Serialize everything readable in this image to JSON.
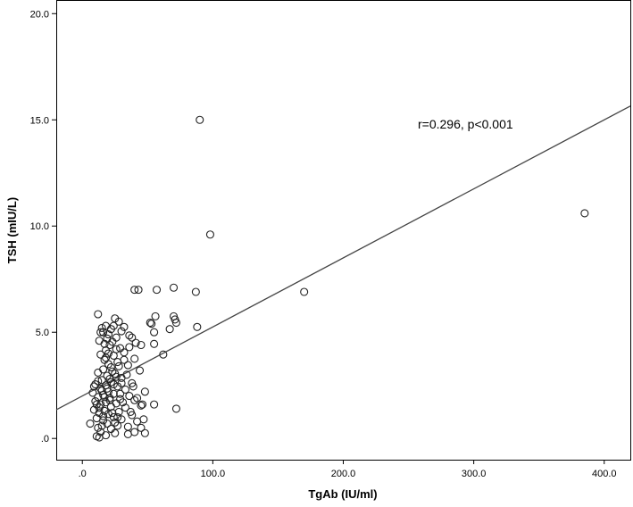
{
  "chart_data": {
    "type": "scatter",
    "title": "",
    "xlabel": "TgAb (IU/ml)",
    "ylabel": "TSH (mIU/L)",
    "xlim": [
      -20,
      420
    ],
    "ylim": [
      -1.0,
      20.6
    ],
    "x_ticks": [
      0,
      100,
      200,
      300,
      400
    ],
    "x_tick_labels": [
      ".0",
      "100.0",
      "200.0",
      "300.0",
      "400.0"
    ],
    "y_ticks": [
      0,
      5,
      10,
      15,
      20
    ],
    "y_tick_labels": [
      ".0",
      "5.0",
      "10.0",
      "15.0",
      "20.0"
    ],
    "grid": false,
    "annotation": "r=0.296, p<0.001",
    "fit_line": {
      "x": [
        -20,
        420
      ],
      "y": [
        1.35,
        15.65
      ]
    },
    "points": [
      [
        90,
        15.0
      ],
      [
        98,
        9.6
      ],
      [
        385,
        10.6
      ],
      [
        170,
        6.9
      ],
      [
        70,
        7.1
      ],
      [
        87,
        6.9
      ],
      [
        40,
        7.0
      ],
      [
        43,
        7.0
      ],
      [
        57,
        7.0
      ],
      [
        12,
        5.85
      ],
      [
        70,
        5.75
      ],
      [
        71,
        5.6
      ],
      [
        56,
        5.75
      ],
      [
        88,
        5.25
      ],
      [
        67,
        5.15
      ],
      [
        52,
        5.45
      ],
      [
        53,
        5.4
      ],
      [
        72,
        5.45
      ],
      [
        25,
        5.65
      ],
      [
        28,
        5.5
      ],
      [
        18,
        5.3
      ],
      [
        32,
        5.25
      ],
      [
        15,
        5.2
      ],
      [
        22,
        5.15
      ],
      [
        30,
        5.05
      ],
      [
        16,
        5.0
      ],
      [
        20,
        4.9
      ],
      [
        36,
        4.85
      ],
      [
        55,
        5.0
      ],
      [
        38,
        4.75
      ],
      [
        26,
        4.75
      ],
      [
        13,
        4.6
      ],
      [
        41,
        4.5
      ],
      [
        45,
        4.4
      ],
      [
        55,
        4.45
      ],
      [
        21,
        4.4
      ],
      [
        29,
        4.25
      ],
      [
        18,
        4.15
      ],
      [
        32,
        4.05
      ],
      [
        14,
        3.95
      ],
      [
        24,
        3.9
      ],
      [
        62,
        3.95
      ],
      [
        40,
        3.75
      ],
      [
        17,
        3.7
      ],
      [
        27,
        3.6
      ],
      [
        20,
        3.5
      ],
      [
        35,
        3.45
      ],
      [
        22,
        3.35
      ],
      [
        16,
        3.25
      ],
      [
        44,
        3.2
      ],
      [
        12,
        3.1
      ],
      [
        25,
        3.05
      ],
      [
        19,
        2.95
      ],
      [
        30,
        2.85
      ],
      [
        15,
        2.75
      ],
      [
        22,
        2.65
      ],
      [
        38,
        2.6
      ],
      [
        10,
        2.55
      ],
      [
        18,
        2.5
      ],
      [
        27,
        2.45
      ],
      [
        14,
        2.35
      ],
      [
        33,
        2.3
      ],
      [
        20,
        2.2
      ],
      [
        8,
        2.15
      ],
      [
        24,
        2.1
      ],
      [
        16,
        2.05
      ],
      [
        36,
        2.0
      ],
      [
        12,
        1.95
      ],
      [
        21,
        1.9
      ],
      [
        29,
        1.85
      ],
      [
        40,
        1.8
      ],
      [
        10,
        1.75
      ],
      [
        18,
        1.7
      ],
      [
        26,
        1.65
      ],
      [
        14,
        1.6
      ],
      [
        45,
        1.55
      ],
      [
        55,
        1.6
      ],
      [
        22,
        1.5
      ],
      [
        33,
        1.45
      ],
      [
        72,
        1.4
      ],
      [
        9,
        1.35
      ],
      [
        17,
        1.3
      ],
      [
        28,
        1.25
      ],
      [
        13,
        1.2
      ],
      [
        20,
        1.15
      ],
      [
        38,
        1.1
      ],
      [
        24,
        1.0
      ],
      [
        11,
        0.95
      ],
      [
        30,
        0.9
      ],
      [
        16,
        0.85
      ],
      [
        42,
        0.8
      ],
      [
        6,
        0.7
      ],
      [
        19,
        0.7
      ],
      [
        27,
        0.6
      ],
      [
        35,
        0.55
      ],
      [
        12,
        0.5
      ],
      [
        22,
        0.45
      ],
      [
        45,
        0.5
      ],
      [
        14,
        0.3
      ],
      [
        25,
        0.25
      ],
      [
        40,
        0.3
      ],
      [
        48,
        0.25
      ],
      [
        35,
        0.2
      ],
      [
        18,
        0.15
      ],
      [
        11,
        0.1
      ],
      [
        13,
        0.05
      ],
      [
        21,
        2.8
      ],
      [
        23,
        3.15
      ],
      [
        19,
        2.35
      ],
      [
        26,
        2.9
      ],
      [
        17,
        1.95
      ],
      [
        24,
        2.55
      ],
      [
        31,
        1.7
      ],
      [
        15,
        2.25
      ],
      [
        28,
        3.4
      ],
      [
        20,
        4.0
      ],
      [
        23,
        4.55
      ],
      [
        34,
        3.0
      ],
      [
        29,
        2.1
      ],
      [
        13,
        1.45
      ],
      [
        37,
        1.25
      ],
      [
        25,
        0.75
      ],
      [
        16,
        1.05
      ],
      [
        46,
        1.6
      ],
      [
        9,
        2.45
      ],
      [
        32,
        3.7
      ],
      [
        18,
        3.8
      ],
      [
        23,
        1.2
      ],
      [
        27,
        1.0
      ],
      [
        15,
        0.6
      ],
      [
        30,
        2.6
      ],
      [
        21,
        1.8
      ],
      [
        12,
        2.7
      ],
      [
        26,
        4.2
      ],
      [
        17,
        4.45
      ],
      [
        48,
        2.2
      ],
      [
        39,
        2.45
      ],
      [
        14,
        5.0
      ],
      [
        24,
        5.3
      ],
      [
        19,
        4.7
      ],
      [
        36,
        4.3
      ],
      [
        47,
        0.9
      ],
      [
        42,
        1.9
      ],
      [
        11,
        1.6
      ]
    ]
  }
}
